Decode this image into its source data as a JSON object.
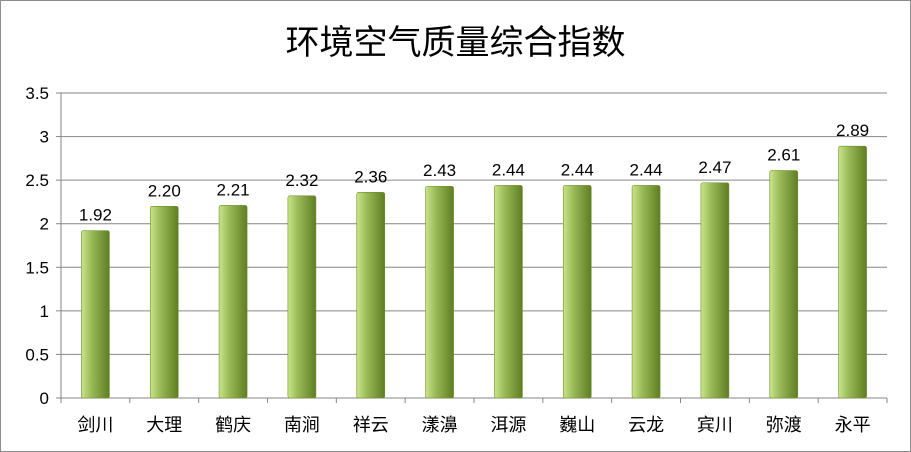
{
  "chart_data": {
    "type": "bar",
    "title": "环境空气质量综合指数",
    "xlabel": "",
    "ylabel": "",
    "categories": [
      "剑川",
      "大理",
      "鹤庆",
      "南涧",
      "祥云",
      "漾濞",
      "洱源",
      "巍山",
      "云龙",
      "宾川",
      "弥渡",
      "永平"
    ],
    "values": [
      1.92,
      2.2,
      2.21,
      2.32,
      2.36,
      2.43,
      2.44,
      2.44,
      2.44,
      2.47,
      2.61,
      2.89
    ],
    "data_labels": [
      "1.92",
      "2.20",
      "2.21",
      "2.32",
      "2.36",
      "2.43",
      "2.44",
      "2.44",
      "2.44",
      "2.47",
      "2.61",
      "2.89"
    ],
    "ylim": [
      0,
      3.5
    ],
    "yticks": [
      0,
      0.5,
      1,
      1.5,
      2,
      2.5,
      3,
      3.5
    ],
    "ytick_labels": [
      "0",
      "0.5",
      "1",
      "1.5",
      "2",
      "2.5",
      "3",
      "3.5"
    ],
    "grid": true,
    "legend": "none",
    "colors": {
      "bar_light": "#c9e58a",
      "bar_mid": "#9bbb59",
      "bar_dark": "#5f7d22",
      "gridline": "#868686"
    }
  }
}
